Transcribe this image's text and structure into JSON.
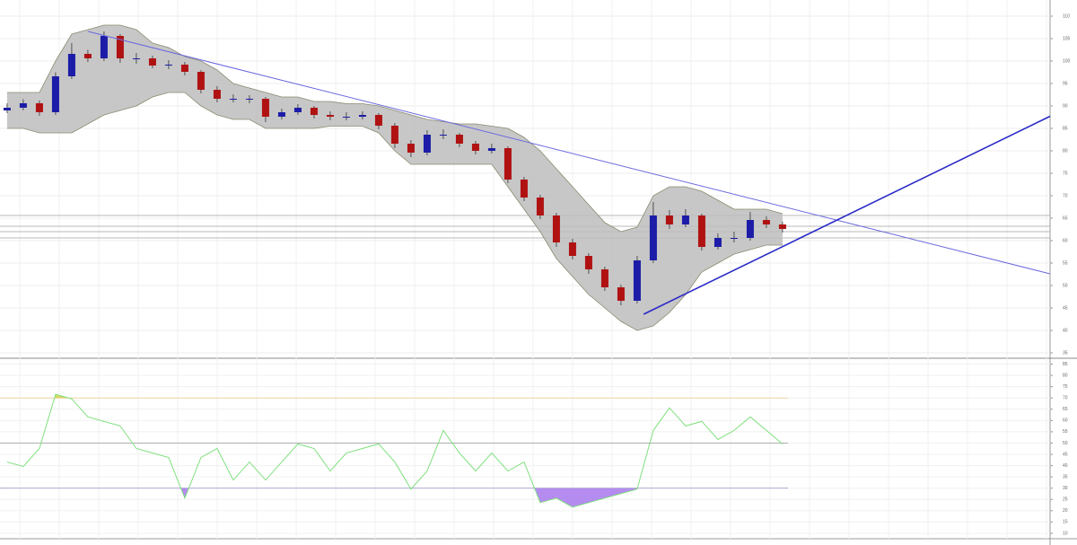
{
  "chart_data": {
    "type": "candlestick",
    "xlim": [
      -0.44,
      64.56
    ],
    "ylim": [
      34,
      113.6
    ],
    "yticks": [
      35,
      40,
      45,
      50,
      55,
      60,
      65,
      70,
      75,
      80,
      85,
      90,
      95,
      100,
      105,
      110
    ],
    "grid": true,
    "up_color": "#1c1ca8",
    "down_color": "#b01212",
    "candles": [
      [
        89,
        90.6,
        88.4,
        89.6
      ],
      [
        89.6,
        91.5,
        89,
        90.6
      ],
      [
        90.6,
        91.2,
        87.8,
        88.6
      ],
      [
        88.6,
        97.5,
        88,
        96.6
      ],
      [
        96.6,
        104,
        96,
        101.6
      ],
      [
        101.6,
        102.5,
        99.8,
        100.6
      ],
      [
        100.6,
        106.6,
        100,
        105.6
      ],
      [
        105.6,
        106,
        99.6,
        100.6
      ],
      [
        100.6,
        101.8,
        99.4,
        100.6
      ],
      [
        100.6,
        101.2,
        98.4,
        99
      ],
      [
        99,
        100.2,
        98.2,
        99.2
      ],
      [
        99.2,
        99.8,
        96.8,
        97.6
      ],
      [
        97.6,
        98,
        92.8,
        93.6
      ],
      [
        93.6,
        94.4,
        90.8,
        91.6
      ],
      [
        91.6,
        92.6,
        90.8,
        91.6
      ],
      [
        91.6,
        92.4,
        90.6,
        91.6
      ],
      [
        91.6,
        92,
        86.4,
        87.6
      ],
      [
        87.6,
        89.4,
        87,
        88.6
      ],
      [
        88.6,
        90.4,
        88,
        89.6
      ],
      [
        89.6,
        90,
        87.2,
        88
      ],
      [
        88,
        88.8,
        86.8,
        87.6
      ],
      [
        87.6,
        88.6,
        86.8,
        87.6
      ],
      [
        87.6,
        88.8,
        87,
        88
      ],
      [
        88,
        88.4,
        84.8,
        85.6
      ],
      [
        85.6,
        86.2,
        80.6,
        81.6
      ],
      [
        81.6,
        82.4,
        78.6,
        79.6
      ],
      [
        79.6,
        84.6,
        79,
        83.6
      ],
      [
        83.6,
        84.8,
        82.6,
        83.6
      ],
      [
        83.6,
        84,
        80.8,
        81.6
      ],
      [
        81.6,
        82.2,
        79.2,
        80
      ],
      [
        80,
        81.6,
        79.4,
        80.6
      ],
      [
        80.6,
        81,
        72.8,
        73.6
      ],
      [
        73.6,
        74.2,
        68.8,
        69.6
      ],
      [
        69.6,
        70.2,
        64.8,
        65.6
      ],
      [
        65.6,
        66.2,
        58.6,
        59.6
      ],
      [
        59.6,
        60.4,
        55.8,
        56.6
      ],
      [
        56.6,
        57.2,
        52.6,
        53.6
      ],
      [
        53.6,
        54.2,
        48.8,
        49.6
      ],
      [
        49.6,
        50.2,
        45.6,
        46.6
      ],
      [
        46.6,
        56.6,
        46,
        55.6
      ],
      [
        55.6,
        68.6,
        55,
        65.6
      ],
      [
        65.6,
        66.8,
        62.6,
        63.6
      ],
      [
        63.6,
        67,
        63,
        65.6
      ],
      [
        65.6,
        66,
        57.8,
        58.6
      ],
      [
        58.6,
        61.6,
        58,
        60.6
      ],
      [
        60.6,
        62,
        59.6,
        60.6
      ],
      [
        60.6,
        66.4,
        60,
        64.6
      ],
      [
        64.6,
        65.4,
        62.8,
        63.6
      ],
      [
        63.6,
        64.2,
        61.8,
        62.6
      ]
    ],
    "bands": {
      "color": "#bdbdbd",
      "upper": [
        93,
        93,
        93,
        100,
        106,
        107,
        108,
        108,
        107,
        104,
        103,
        101,
        100,
        98,
        95,
        94,
        93,
        92,
        92,
        91,
        91,
        90.5,
        90.5,
        90,
        89,
        88,
        87,
        86.5,
        86,
        86,
        85.5,
        85,
        83,
        80,
        76,
        72,
        68,
        64,
        62,
        63,
        70,
        72,
        72,
        71,
        69,
        67,
        67,
        67,
        66
      ],
      "lower": [
        85,
        85,
        84,
        84,
        84,
        86,
        88,
        89,
        90,
        92,
        93,
        93,
        90,
        88,
        87,
        87,
        85,
        85,
        85,
        85,
        85.5,
        85.5,
        85.5,
        84,
        80,
        77,
        77,
        77,
        77,
        77,
        77,
        72,
        67,
        62,
        56,
        52,
        48,
        45,
        42,
        40,
        41,
        44,
        48,
        53,
        55,
        57,
        58,
        59,
        59
      ]
    },
    "trendlines": [
      {
        "color": "#6a6ae0",
        "x": [
          5,
          64.56
        ],
        "y": [
          106.6,
          52.6
        ]
      },
      {
        "color": "#2a2ac8",
        "x": [
          39.4,
          64.56
        ],
        "y": [
          43.6,
          87.7
        ]
      }
    ],
    "levels": [
      65.6,
      63.2,
      62,
      60.6
    ],
    "rsi": {
      "color": "#7fe07f",
      "ylim": [
        8.4,
        86.8
      ],
      "yticks": [
        10,
        15,
        20,
        25,
        30,
        35,
        40,
        45,
        50,
        55,
        60,
        65,
        70,
        75,
        80,
        85
      ],
      "levels": [
        70,
        50,
        30
      ],
      "over_color": "#d8d860",
      "under_color": "#b48cf0",
      "values": [
        41.6,
        39.6,
        47.6,
        71.6,
        69.6,
        61.6,
        59.6,
        57.6,
        47.6,
        45.6,
        43.6,
        25.6,
        43.6,
        47.6,
        33.6,
        41.6,
        33.6,
        41.6,
        49.6,
        47.6,
        37.6,
        45.6,
        47.6,
        49.6,
        41.6,
        29.6,
        37.6,
        55.6,
        45.6,
        37.6,
        45.6,
        37.6,
        41.6,
        23.6,
        25.6,
        21.6,
        23.6,
        25.6,
        27.6,
        29.6,
        55.6,
        65.6,
        57.6,
        59.6,
        51.6,
        55.6,
        61.6,
        55.6,
        49.6
      ]
    }
  }
}
